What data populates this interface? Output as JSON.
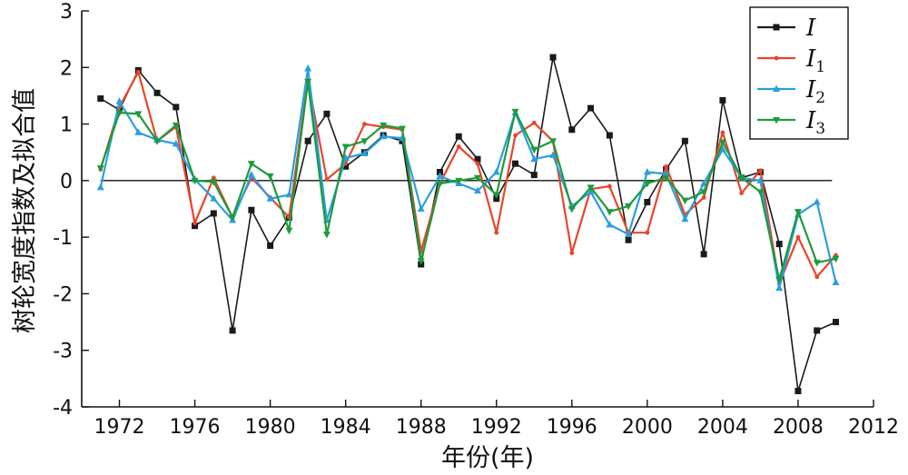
{
  "chart_data": {
    "type": "line",
    "title": "",
    "xlabel": "年份(年)",
    "ylabel": "树轮宽度指数及拟合值",
    "xlim": [
      1970,
      2012
    ],
    "ylim": [
      -4,
      3
    ],
    "xticks": [
      1972,
      1976,
      1980,
      1984,
      1988,
      1992,
      1996,
      2000,
      2004,
      2008,
      2012
    ],
    "yticks": [
      -4,
      -3,
      -2,
      -1,
      0,
      1,
      2,
      3
    ],
    "reference_line": 0,
    "legend_position": "top-right",
    "x": [
      1971,
      1972,
      1973,
      1974,
      1975,
      1976,
      1977,
      1978,
      1979,
      1980,
      1981,
      1982,
      1983,
      1984,
      1985,
      1986,
      1987,
      1988,
      1989,
      1990,
      1991,
      1992,
      1993,
      1994,
      1995,
      1996,
      1997,
      1998,
      1999,
      2000,
      2001,
      2002,
      2003,
      2004,
      2005,
      2006,
      2007,
      2008,
      2009,
      2010
    ],
    "series": [
      {
        "name": "I",
        "sub": "",
        "color": "#1a1a1a",
        "marker": "square",
        "values": [
          1.45,
          1.25,
          1.95,
          1.55,
          1.3,
          -0.8,
          -0.58,
          -2.65,
          -0.52,
          -1.15,
          -0.65,
          0.7,
          1.18,
          0.25,
          0.5,
          0.8,
          0.7,
          -1.48,
          0.15,
          0.78,
          0.38,
          -0.32,
          0.3,
          0.1,
          2.18,
          0.9,
          1.28,
          0.8,
          -1.05,
          -0.38,
          0.2,
          0.7,
          -1.3,
          1.42,
          0.05,
          0.15,
          -1.12,
          -3.72,
          -2.65,
          -2.5
        ]
      },
      {
        "name": "I",
        "sub": "1",
        "color": "#e8452a",
        "marker": "dot",
        "values": [
          0.2,
          1.3,
          1.92,
          0.7,
          0.95,
          -0.75,
          0.05,
          -0.65,
          0.05,
          -0.3,
          -0.65,
          1.78,
          0.02,
          0.3,
          1.0,
          0.95,
          0.9,
          -1.25,
          -0.05,
          0.6,
          0.3,
          -0.92,
          0.8,
          1.02,
          0.7,
          -1.28,
          -0.15,
          -0.1,
          -0.92,
          -0.92,
          0.25,
          -0.6,
          -0.3,
          0.85,
          -0.22,
          0.18,
          -1.82,
          -1.0,
          -1.7,
          -1.32
        ]
      },
      {
        "name": "I",
        "sub": "2",
        "color": "#2a9ee0",
        "marker": "triangle-up",
        "values": [
          -0.12,
          1.4,
          0.85,
          0.72,
          0.65,
          0.02,
          -0.32,
          -0.7,
          0.1,
          -0.32,
          -0.25,
          1.98,
          -0.7,
          0.4,
          0.48,
          0.78,
          0.75,
          -0.5,
          0.08,
          -0.05,
          -0.18,
          0.15,
          1.2,
          0.38,
          0.45,
          -0.45,
          -0.2,
          -0.78,
          -0.95,
          0.15,
          0.12,
          -0.68,
          -0.05,
          0.55,
          0.05,
          0.0,
          -1.9,
          -0.6,
          -0.38,
          -1.8
        ]
      },
      {
        "name": "I",
        "sub": "3",
        "color": "#1f9a3c",
        "marker": "triangle-down",
        "values": [
          0.22,
          1.2,
          1.18,
          0.7,
          0.98,
          0.0,
          -0.02,
          -0.65,
          0.3,
          0.08,
          -0.88,
          1.75,
          -0.95,
          0.6,
          0.7,
          0.98,
          0.92,
          -1.42,
          -0.05,
          0.0,
          0.05,
          -0.25,
          1.22,
          0.55,
          0.7,
          -0.5,
          -0.12,
          -0.55,
          -0.45,
          -0.05,
          0.05,
          -0.35,
          -0.2,
          0.68,
          0.05,
          -0.2,
          -1.75,
          -0.55,
          -1.45,
          -1.38
        ]
      }
    ]
  }
}
